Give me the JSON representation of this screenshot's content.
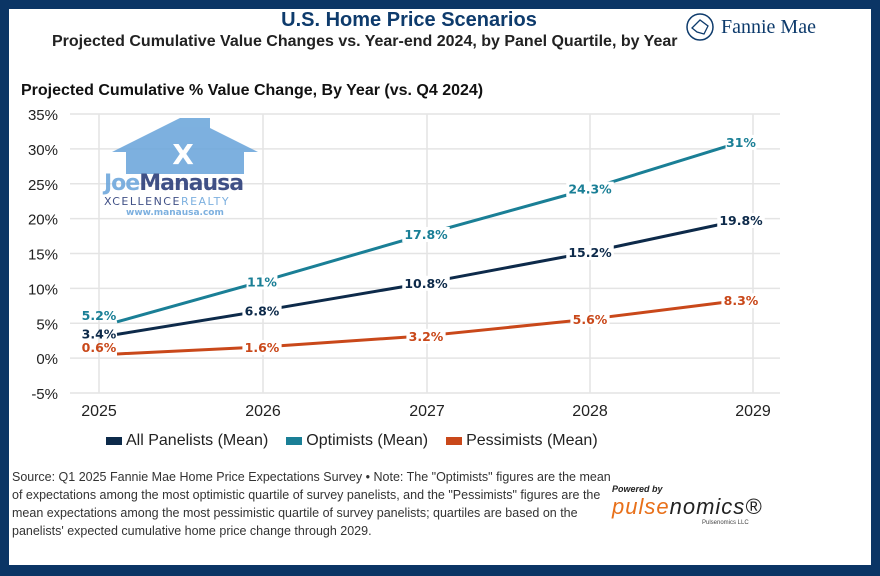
{
  "header": {
    "title": "U.S. Home Price Scenarios",
    "subtitle": "Projected Cumulative Value Changes vs. Year-end 2024, by Panel Quartile, by Year",
    "brand": "Fannie Mae"
  },
  "watermark": {
    "name": "JoeManausa",
    "tagline": "XCELLENCE REALTY",
    "url": "www.manausa.com"
  },
  "chart_data": {
    "type": "line",
    "title": "Projected Cumulative % Value Change, By Year (vs. Q4 2024)",
    "categories": [
      "2025",
      "2026",
      "2027",
      "2028",
      "2029"
    ],
    "ylim": [
      -5,
      35
    ],
    "yticks": [
      "-5%",
      "0%",
      "5%",
      "10%",
      "15%",
      "20%",
      "25%",
      "30%",
      "35%"
    ],
    "grid": true,
    "legend_position": "bottom",
    "series": [
      {
        "name": "All Panelists (Mean)",
        "color": "#0d2a4a",
        "values": [
          3.4,
          6.8,
          10.8,
          15.2,
          19.8
        ],
        "labels": [
          "3.4%",
          "6.8%",
          "10.8%",
          "15.2%",
          "19.8%"
        ]
      },
      {
        "name": "Optimists (Mean)",
        "color": "#1a7f96",
        "values": [
          5.2,
          11,
          17.8,
          24.3,
          31
        ],
        "labels": [
          "5.2%",
          "11%",
          "17.8%",
          "24.3%",
          "31%"
        ]
      },
      {
        "name": "Pessimists (Mean)",
        "color": "#c9481a",
        "values": [
          0.6,
          1.6,
          3.2,
          5.6,
          8.3
        ],
        "labels": [
          "0.6%",
          "1.6%",
          "3.2%",
          "5.6%",
          "8.3%"
        ]
      }
    ]
  },
  "footer": {
    "note": "Source: Q1 2025 Fannie Mae Home Price Expectations Survey • Note: The \"Optimists\" figures are the mean of expectations among the most optimistic quartile of survey panelists, and the \"Pessimists\" figures are the mean expectations among the most pessimistic quartile of survey panelists; quartiles are based on the panelists' expected cumulative home price change through 2029.",
    "powered_by": "Powered by",
    "pulse_a": "pulse",
    "pulse_b": "nomics®",
    "company": "Pulsenomics LLC"
  }
}
